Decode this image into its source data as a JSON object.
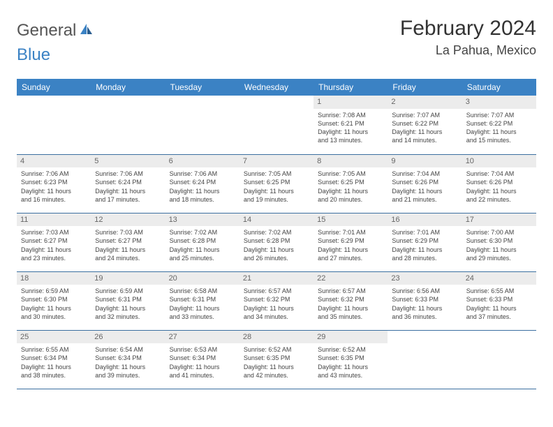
{
  "logo": {
    "part1": "General",
    "part2": "Blue"
  },
  "title": "February 2024",
  "location": "La Pahua, Mexico",
  "colors": {
    "brand": "#3b82c4",
    "daybar": "#ececec",
    "rule": "#3b6fa0"
  },
  "weekdays": [
    "Sunday",
    "Monday",
    "Tuesday",
    "Wednesday",
    "Thursday",
    "Friday",
    "Saturday"
  ],
  "weeks": [
    [
      null,
      null,
      null,
      null,
      {
        "n": "1",
        "sr": "7:08 AM",
        "ss": "6:21 PM",
        "dh": "11",
        "dm": "13"
      },
      {
        "n": "2",
        "sr": "7:07 AM",
        "ss": "6:22 PM",
        "dh": "11",
        "dm": "14"
      },
      {
        "n": "3",
        "sr": "7:07 AM",
        "ss": "6:22 PM",
        "dh": "11",
        "dm": "15"
      }
    ],
    [
      {
        "n": "4",
        "sr": "7:06 AM",
        "ss": "6:23 PM",
        "dh": "11",
        "dm": "16"
      },
      {
        "n": "5",
        "sr": "7:06 AM",
        "ss": "6:24 PM",
        "dh": "11",
        "dm": "17"
      },
      {
        "n": "6",
        "sr": "7:06 AM",
        "ss": "6:24 PM",
        "dh": "11",
        "dm": "18"
      },
      {
        "n": "7",
        "sr": "7:05 AM",
        "ss": "6:25 PM",
        "dh": "11",
        "dm": "19"
      },
      {
        "n": "8",
        "sr": "7:05 AM",
        "ss": "6:25 PM",
        "dh": "11",
        "dm": "20"
      },
      {
        "n": "9",
        "sr": "7:04 AM",
        "ss": "6:26 PM",
        "dh": "11",
        "dm": "21"
      },
      {
        "n": "10",
        "sr": "7:04 AM",
        "ss": "6:26 PM",
        "dh": "11",
        "dm": "22"
      }
    ],
    [
      {
        "n": "11",
        "sr": "7:03 AM",
        "ss": "6:27 PM",
        "dh": "11",
        "dm": "23"
      },
      {
        "n": "12",
        "sr": "7:03 AM",
        "ss": "6:27 PM",
        "dh": "11",
        "dm": "24"
      },
      {
        "n": "13",
        "sr": "7:02 AM",
        "ss": "6:28 PM",
        "dh": "11",
        "dm": "25"
      },
      {
        "n": "14",
        "sr": "7:02 AM",
        "ss": "6:28 PM",
        "dh": "11",
        "dm": "26"
      },
      {
        "n": "15",
        "sr": "7:01 AM",
        "ss": "6:29 PM",
        "dh": "11",
        "dm": "27"
      },
      {
        "n": "16",
        "sr": "7:01 AM",
        "ss": "6:29 PM",
        "dh": "11",
        "dm": "28"
      },
      {
        "n": "17",
        "sr": "7:00 AM",
        "ss": "6:30 PM",
        "dh": "11",
        "dm": "29"
      }
    ],
    [
      {
        "n": "18",
        "sr": "6:59 AM",
        "ss": "6:30 PM",
        "dh": "11",
        "dm": "30"
      },
      {
        "n": "19",
        "sr": "6:59 AM",
        "ss": "6:31 PM",
        "dh": "11",
        "dm": "32"
      },
      {
        "n": "20",
        "sr": "6:58 AM",
        "ss": "6:31 PM",
        "dh": "11",
        "dm": "33"
      },
      {
        "n": "21",
        "sr": "6:57 AM",
        "ss": "6:32 PM",
        "dh": "11",
        "dm": "34"
      },
      {
        "n": "22",
        "sr": "6:57 AM",
        "ss": "6:32 PM",
        "dh": "11",
        "dm": "35"
      },
      {
        "n": "23",
        "sr": "6:56 AM",
        "ss": "6:33 PM",
        "dh": "11",
        "dm": "36"
      },
      {
        "n": "24",
        "sr": "6:55 AM",
        "ss": "6:33 PM",
        "dh": "11",
        "dm": "37"
      }
    ],
    [
      {
        "n": "25",
        "sr": "6:55 AM",
        "ss": "6:34 PM",
        "dh": "11",
        "dm": "38"
      },
      {
        "n": "26",
        "sr": "6:54 AM",
        "ss": "6:34 PM",
        "dh": "11",
        "dm": "39"
      },
      {
        "n": "27",
        "sr": "6:53 AM",
        "ss": "6:34 PM",
        "dh": "11",
        "dm": "41"
      },
      {
        "n": "28",
        "sr": "6:52 AM",
        "ss": "6:35 PM",
        "dh": "11",
        "dm": "42"
      },
      {
        "n": "29",
        "sr": "6:52 AM",
        "ss": "6:35 PM",
        "dh": "11",
        "dm": "43"
      },
      null,
      null
    ]
  ],
  "labels": {
    "sunrise": "Sunrise: ",
    "sunset": "Sunset: ",
    "daylight1": "Daylight: ",
    "hours": " hours",
    "and": "and ",
    "minutes": " minutes."
  }
}
